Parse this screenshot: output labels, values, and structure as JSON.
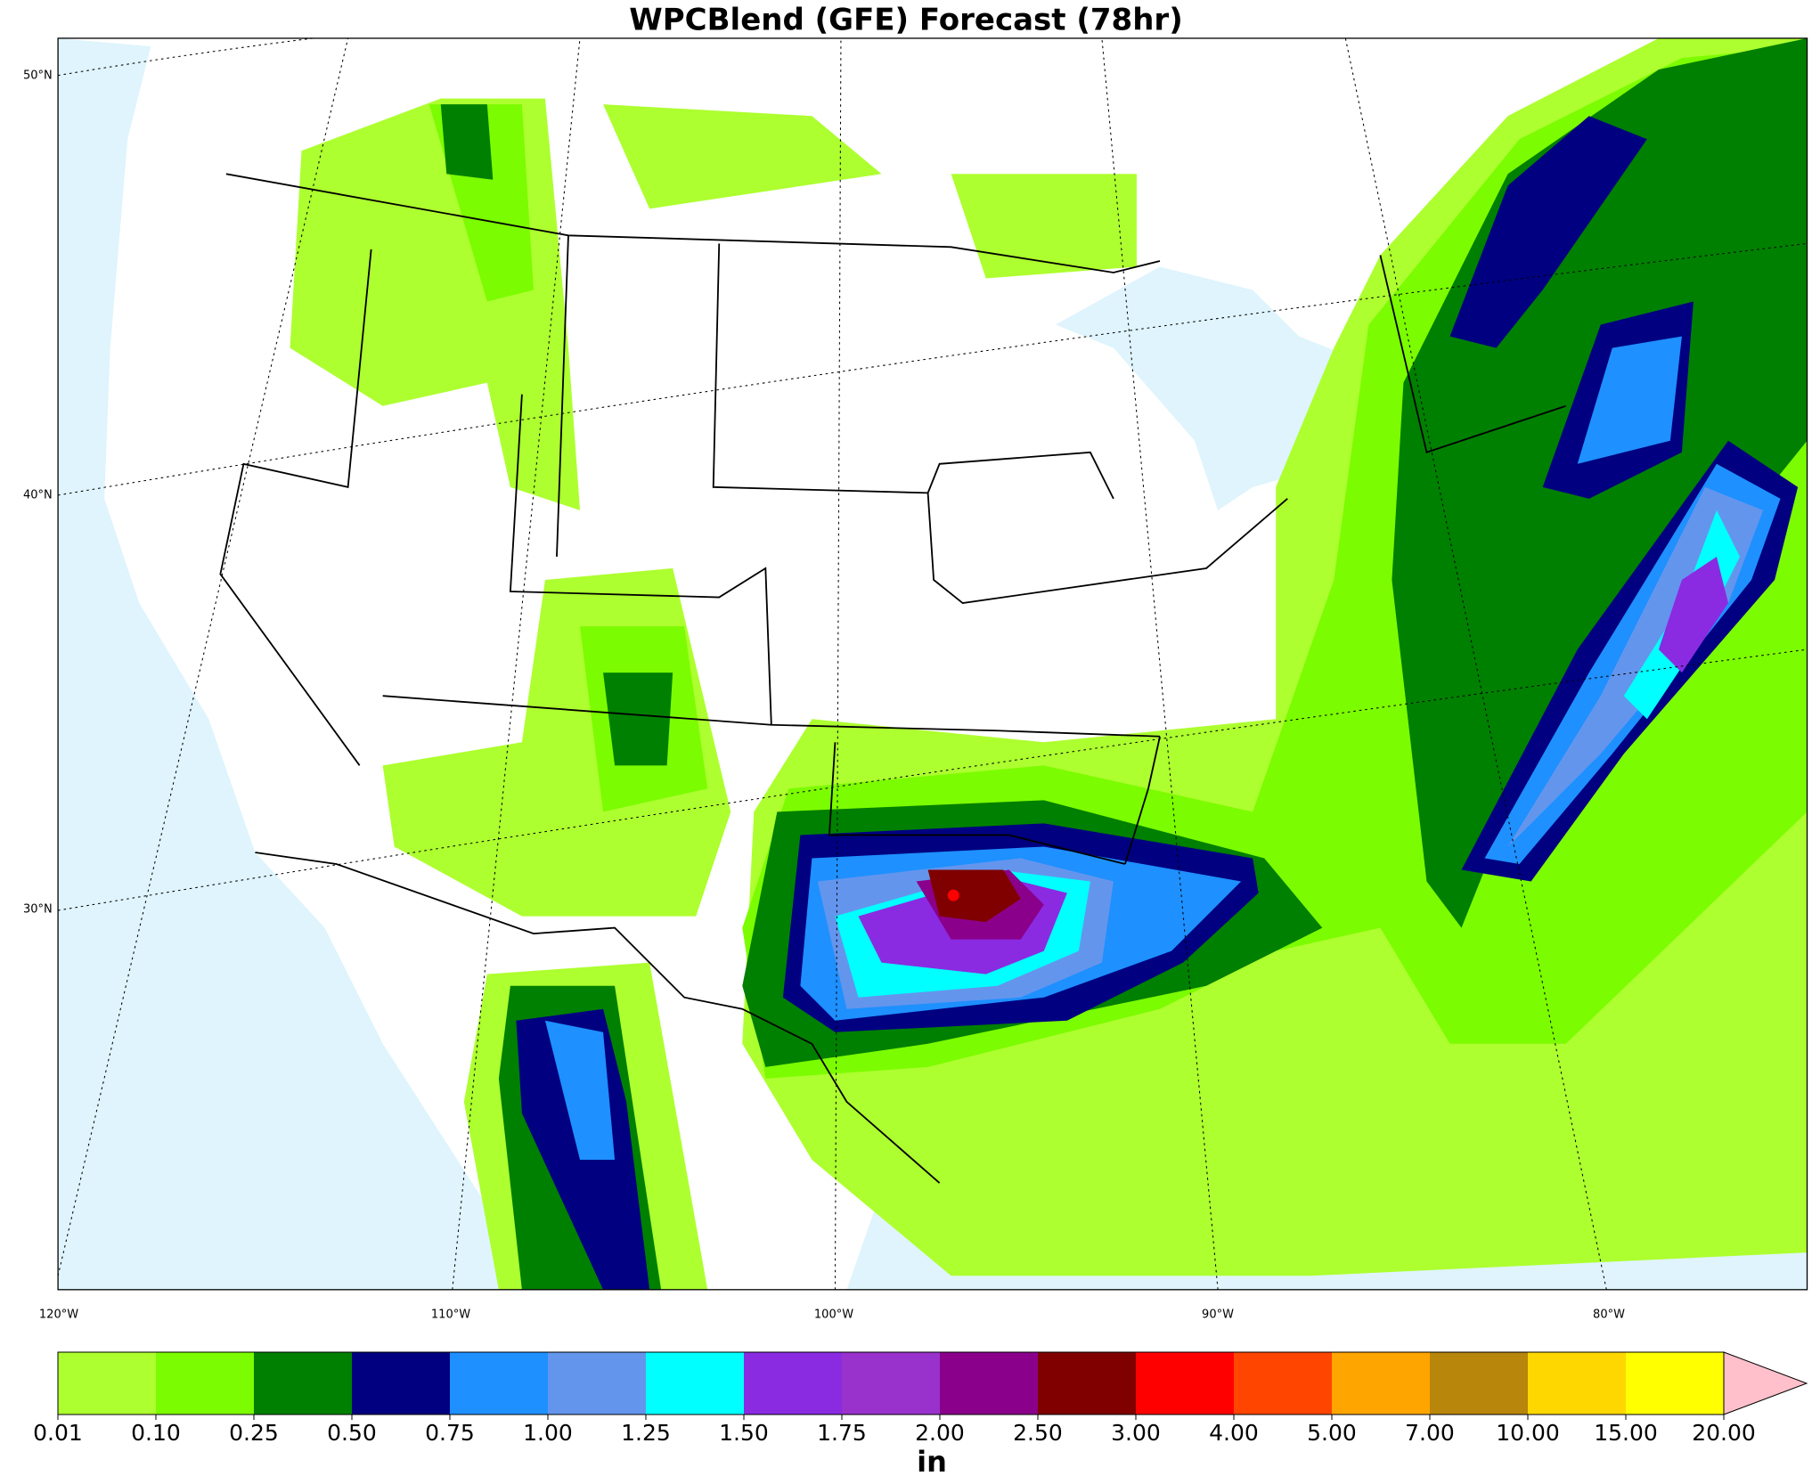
{
  "title": "WPCBlend (GFE) Forecast (78hr)",
  "map": {
    "lat_labels": [
      "50°N",
      "40°N",
      "30°N"
    ],
    "lon_labels": [
      "120°W",
      "110°W",
      "100°W",
      "90°W",
      "80°W"
    ]
  },
  "colorbar": {
    "label": "in",
    "ticks": [
      {
        "value": 0.01,
        "label": "0.01"
      },
      {
        "value": 0.1,
        "label": "0.10"
      },
      {
        "value": 0.25,
        "label": "0.25"
      },
      {
        "value": 0.5,
        "label": "0.50"
      },
      {
        "value": 0.75,
        "label": "0.75"
      },
      {
        "value": 1,
        "label": "1.00"
      },
      {
        "value": 1.25,
        "label": "1.25"
      },
      {
        "value": 1.5,
        "label": "1.50"
      },
      {
        "value": 1.75,
        "label": "1.75"
      },
      {
        "value": 2,
        "label": "2.00"
      },
      {
        "value": 2.5,
        "label": "2.50"
      },
      {
        "value": 3,
        "label": "3.00"
      },
      {
        "value": 4,
        "label": "4.00"
      },
      {
        "value": 5,
        "label": "5.00"
      },
      {
        "value": 7,
        "label": "7.00"
      },
      {
        "value": 10,
        "label": "10.00"
      },
      {
        "value": 15,
        "label": "15.00"
      },
      {
        "value": 20,
        "label": "20.00"
      }
    ],
    "colors": [
      "#adff2f",
      "#7cfc00",
      "#008000",
      "#000080",
      "#1e90ff",
      "#6495ed",
      "#00ffff",
      "#8a2be2",
      "#9932cc",
      "#8b008b",
      "#800000",
      "#ff0000",
      "#ff4500",
      "#ffa500",
      "#b8860b",
      "#ffd700",
      "#ffff00"
    ],
    "extend_color": "#ffc0cb"
  }
}
